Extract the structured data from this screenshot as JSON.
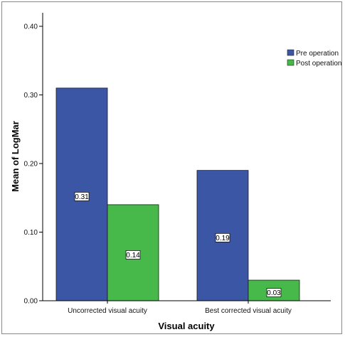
{
  "chart_data": {
    "type": "bar",
    "categories": [
      "Uncorrected visual acuity",
      "Best corrected visual acuity"
    ],
    "series": [
      {
        "name": "Pre operation",
        "values": [
          0.31,
          0.19
        ],
        "color": "#3c56a6"
      },
      {
        "name": "Post operation",
        "values": [
          0.14,
          0.03
        ],
        "color": "#47b84a"
      }
    ],
    "data_labels": [
      [
        "0.31",
        "0.19"
      ],
      [
        "0.14",
        "0.03"
      ]
    ],
    "xlabel": "Visual acuity",
    "ylabel": "Mean of LogMar",
    "ylim": [
      0,
      0.4
    ],
    "yticks": [
      0.0,
      0.1,
      0.2,
      0.3,
      0.4
    ],
    "ytick_labels": [
      "0.00",
      "0.10",
      "0.20",
      "0.30",
      "0.40"
    ],
    "grid": false,
    "legend_position": "top-right"
  }
}
